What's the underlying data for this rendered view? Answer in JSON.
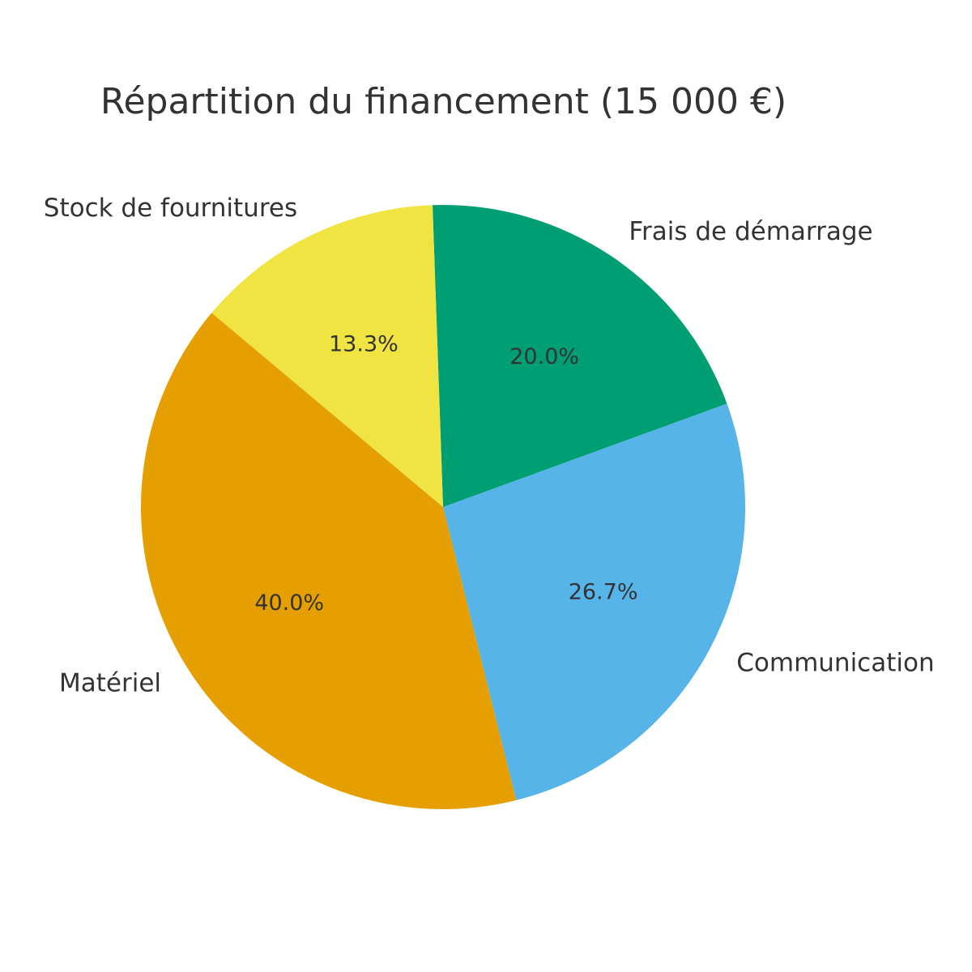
{
  "chart_data": {
    "type": "pie",
    "title": "Répartition du financement (15 000 €)",
    "slices": [
      {
        "label": "Frais de démarrage",
        "value": 3000,
        "percent_label": "20.0%",
        "color": "#009E73"
      },
      {
        "label": "Communication",
        "value": 4000,
        "percent_label": "26.7%",
        "color": "#56B4E9"
      },
      {
        "label": "Matériel",
        "value": 6000,
        "percent_label": "40.0%",
        "color": "#E69F00"
      },
      {
        "label": "Stock de fournitures",
        "value": 2000,
        "percent_label": "13.3%",
        "color": "#F0E442"
      }
    ]
  }
}
